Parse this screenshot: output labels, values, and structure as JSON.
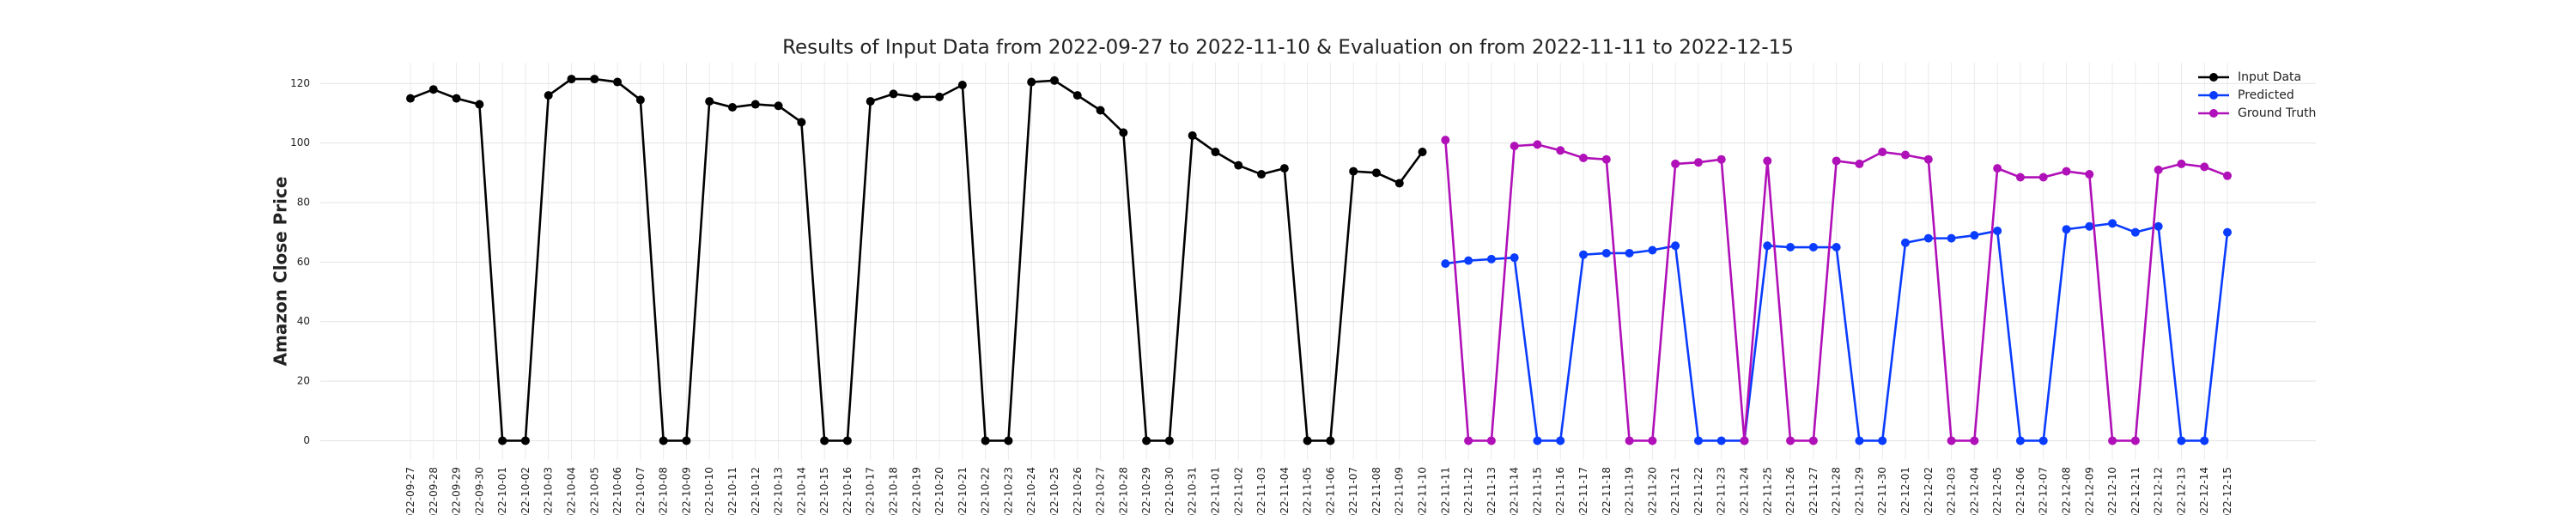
{
  "chart_data": {
    "type": "line",
    "title": "Results of Input Data from 2022-09-27 to 2022-11-10 & Evaluation on from 2022-11-11 to 2022-12-15",
    "y_label": "Amazon Close Price",
    "categories": [
      "2022-09-27",
      "2022-09-28",
      "2022-09-29",
      "2022-09-30",
      "2022-10-01",
      "2022-10-02",
      "2022-10-03",
      "2022-10-04",
      "2022-10-05",
      "2022-10-06",
      "2022-10-07",
      "2022-10-08",
      "2022-10-09",
      "2022-10-10",
      "2022-10-11",
      "2022-10-12",
      "2022-10-13",
      "2022-10-14",
      "2022-10-15",
      "2022-10-16",
      "2022-10-17",
      "2022-10-18",
      "2022-10-19",
      "2022-10-20",
      "2022-10-21",
      "2022-10-22",
      "2022-10-23",
      "2022-10-24",
      "2022-10-25",
      "2022-10-26",
      "2022-10-27",
      "2022-10-28",
      "2022-10-29",
      "2022-10-30",
      "2022-10-31",
      "2022-11-01",
      "2022-11-02",
      "2022-11-03",
      "2022-11-04",
      "2022-11-05",
      "2022-11-06",
      "2022-11-07",
      "2022-11-08",
      "2022-11-09",
      "2022-11-10",
      "2022-11-11",
      "2022-11-12",
      "2022-11-13",
      "2022-11-14",
      "2022-11-15",
      "2022-11-16",
      "2022-11-17",
      "2022-11-18",
      "2022-11-19",
      "2022-11-20",
      "2022-11-21",
      "2022-11-22",
      "2022-11-23",
      "2022-11-24",
      "2022-11-25",
      "2022-11-26",
      "2022-11-27",
      "2022-11-28",
      "2022-11-29",
      "2022-11-30",
      "2022-12-01",
      "2022-12-02",
      "2022-12-03",
      "2022-12-04",
      "2022-12-05",
      "2022-12-06",
      "2022-12-07",
      "2022-12-08",
      "2022-12-09",
      "2022-12-10",
      "2022-12-11",
      "2022-12-12",
      "2022-12-13",
      "2022-12-14",
      "2022-12-15"
    ],
    "series": [
      {
        "name": "Input Data",
        "color": "#000000",
        "values": [
          115,
          118,
          115,
          113,
          0,
          0,
          116,
          121.5,
          121.5,
          120.5,
          114.5,
          0,
          0,
          114,
          112,
          113,
          112.5,
          107,
          0,
          0,
          114,
          116.5,
          115.5,
          115.5,
          119.5,
          0,
          0,
          120.5,
          121,
          116,
          111,
          103.5,
          0,
          0,
          102.5,
          97,
          92.5,
          89.5,
          91.5,
          0,
          0,
          90.5,
          90,
          86.5,
          97,
          null,
          null,
          null,
          null,
          null,
          null,
          null,
          null,
          null,
          null,
          null,
          null,
          null,
          null,
          null,
          null,
          null,
          null,
          null,
          null,
          null,
          null,
          null,
          null,
          null,
          null,
          null,
          null,
          null,
          null,
          null,
          null,
          null,
          null,
          null
        ]
      },
      {
        "name": "Predicted",
        "color": "#0a3cff",
        "values": [
          null,
          null,
          null,
          null,
          null,
          null,
          null,
          null,
          null,
          null,
          null,
          null,
          null,
          null,
          null,
          null,
          null,
          null,
          null,
          null,
          null,
          null,
          null,
          null,
          null,
          null,
          null,
          null,
          null,
          null,
          null,
          null,
          null,
          null,
          null,
          null,
          null,
          null,
          null,
          null,
          null,
          null,
          null,
          null,
          null,
          59.5,
          60.5,
          61,
          61.5,
          0,
          0,
          62.5,
          63,
          63,
          64,
          65.5,
          0,
          0,
          0,
          65.5,
          65,
          65,
          65,
          0,
          0,
          66.5,
          68,
          68,
          69,
          70.5,
          0,
          0,
          71,
          72,
          73,
          70,
          72,
          0,
          0,
          70
        ]
      },
      {
        "name": "Ground Truth",
        "color": "#b010b8",
        "values": [
          null,
          null,
          null,
          null,
          null,
          null,
          null,
          null,
          null,
          null,
          null,
          null,
          null,
          null,
          null,
          null,
          null,
          null,
          null,
          null,
          null,
          null,
          null,
          null,
          null,
          null,
          null,
          null,
          null,
          null,
          null,
          null,
          null,
          null,
          null,
          null,
          null,
          null,
          null,
          null,
          null,
          null,
          null,
          null,
          null,
          101,
          0,
          0,
          99,
          99.5,
          97.5,
          95,
          94.5,
          0,
          0,
          93,
          93.5,
          94.5,
          0,
          94,
          0,
          0,
          94,
          93,
          97,
          96,
          94.5,
          0,
          0,
          91.5,
          88.5,
          88.5,
          90.5,
          89.5,
          0,
          0,
          91,
          93,
          92,
          89
        ]
      }
    ],
    "ylim": [
      -6.5,
      127
    ],
    "yticks": [
      0,
      20,
      40,
      60,
      80,
      100,
      120
    ],
    "grid": true,
    "legend": "upper right"
  }
}
